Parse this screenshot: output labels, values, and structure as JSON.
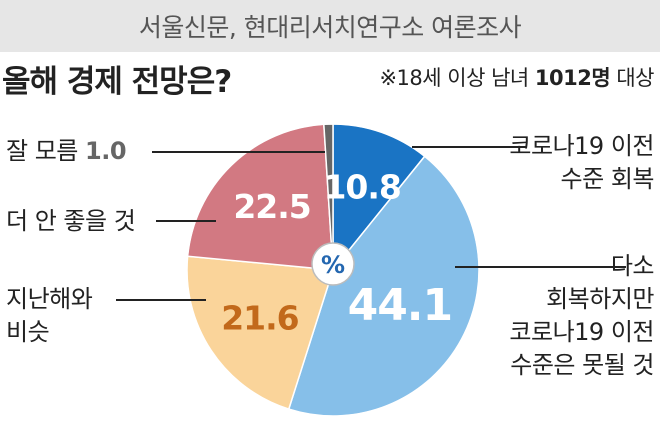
{
  "header": {
    "source": "서울신문, 현대리서치연구소 여론조사"
  },
  "title": "올해 경제 전망은?",
  "note": {
    "prefix": "※18세 이상 남녀 ",
    "count": "1012명",
    "suffix": " 대상"
  },
  "chart_data": {
    "type": "pie",
    "unit_symbol": "%",
    "start_angle_deg": 0,
    "direction": "clockwise",
    "slices": [
      {
        "label": "코로나19 이전 수준 회복",
        "value": 10.8,
        "display": "10.8",
        "color": "#1a74c4",
        "text_color": "#ffffff"
      },
      {
        "label": "다소 회복하지만 코로나19 이전 수준은 못될 것",
        "value": 44.1,
        "display": "44.1",
        "color": "#86bfe9",
        "text_color": "#ffffff"
      },
      {
        "label": "지난해와 비슷",
        "value": 21.6,
        "display": "21.6",
        "color": "#fad49a",
        "text_color": "#c2691b"
      },
      {
        "label": "더 안 좋을 것",
        "value": 22.5,
        "display": "22.5",
        "color": "#d27982",
        "text_color": "#ffffff"
      },
      {
        "label": "잘 모름",
        "value": 1.0,
        "display": "1.0",
        "color": "#666666",
        "text_color": "#666666"
      }
    ]
  },
  "callouts": {
    "recover_line1": "코로나19 이전",
    "recover_line2": "수준 회복",
    "partial_line1": "다소",
    "partial_line2": "회복하지만",
    "partial_line3": "코로나19 이전",
    "partial_line4": "수준은 못될 것",
    "same_line1": "지난해와",
    "same_line2": "비슷",
    "worse": "더 안 좋을 것",
    "unknown_label": "잘 모름 ",
    "unknown_value": "1.0"
  }
}
